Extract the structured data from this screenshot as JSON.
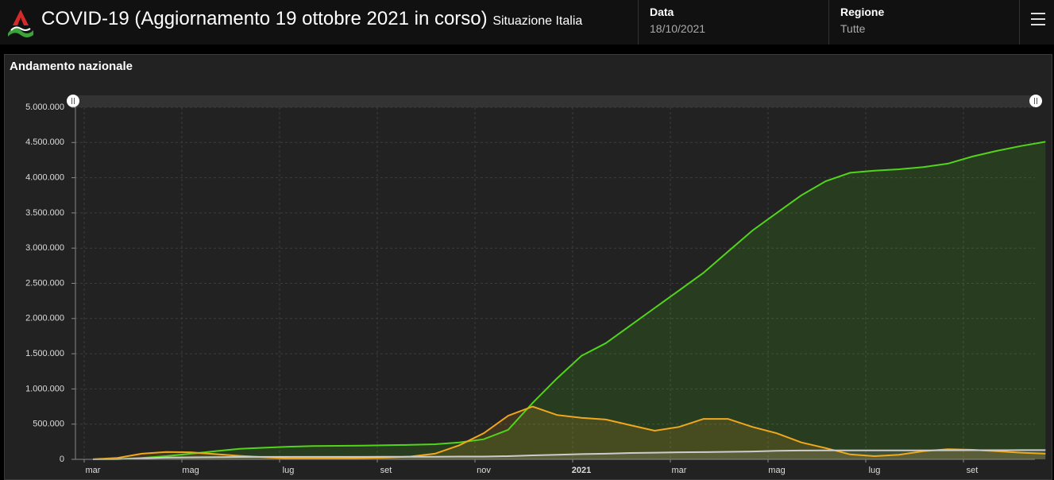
{
  "header": {
    "title": "COVID-19 (Aggiornamento 19 ottobre 2021 in corso)",
    "subtitle": "Situazione Italia",
    "date_label": "Data",
    "date_value": "18/10/2021",
    "region_label": "Regione",
    "region_value": "Tutte"
  },
  "chart_data": {
    "type": "area",
    "title": "Andamento nazionale",
    "categories": [
      "mar",
      null,
      null,
      null,
      "mag",
      null,
      null,
      null,
      "lug",
      null,
      null,
      null,
      "set",
      null,
      null,
      null,
      "nov",
      null,
      null,
      null,
      "2021",
      null,
      null,
      null,
      "mar",
      null,
      null,
      null,
      "mag",
      null,
      null,
      null,
      "lug",
      null,
      null,
      null,
      "set",
      null,
      null,
      null
    ],
    "series": [
      {
        "color": "#52d41a",
        "values": [
          0,
          3000,
          20000,
          45000,
          80000,
          115000,
          150000,
          165000,
          180000,
          188000,
          192000,
          195000,
          200000,
          205000,
          215000,
          240000,
          285000,
          420000,
          800000,
          1150000,
          1470000,
          1650000,
          1900000,
          2150000,
          2400000,
          2650000,
          2950000,
          3250000,
          3500000,
          3750000,
          3950000,
          4070000,
          4100000,
          4120000,
          4150000,
          4200000,
          4300000,
          4380000,
          4450000,
          4510000
        ]
      },
      {
        "color": "#f0a81c",
        "values": [
          1000,
          20000,
          80000,
          105000,
          100000,
          75000,
          50000,
          30000,
          15000,
          12000,
          13000,
          18000,
          25000,
          40000,
          80000,
          200000,
          370000,
          620000,
          750000,
          630000,
          590000,
          565000,
          485000,
          406000,
          460000,
          575000,
          575000,
          460000,
          370000,
          240000,
          160000,
          70000,
          45000,
          65000,
          115000,
          145000,
          135000,
          115000,
          95000,
          80000
        ]
      },
      {
        "color": "#cccccc",
        "values": [
          0,
          2000,
          13000,
          25000,
          28000,
          32000,
          34000,
          35000,
          35000,
          35000,
          35000,
          35500,
          36000,
          36000,
          37000,
          40000,
          40000,
          45000,
          56000,
          65000,
          75000,
          80000,
          90000,
          95000,
          100000,
          103000,
          107000,
          112000,
          122000,
          125000,
          126000,
          127000,
          127000,
          128000,
          128000,
          129000,
          130000,
          130000,
          131000,
          131000
        ]
      }
    ],
    "ylim": [
      0,
      5000000
    ],
    "yticks": [
      0,
      {
        "value": 500000,
        "label": "500.000"
      },
      {
        "value": 1000000,
        "label": "1.000.000"
      },
      {
        "value": 1500000,
        "label": "1.500.000"
      },
      {
        "value": 2000000,
        "label": "2.000.000"
      },
      {
        "value": 2500000,
        "label": "2.500.000"
      },
      {
        "value": 3000000,
        "label": "3.000.000"
      },
      {
        "value": 3500000,
        "label": "3.500.000"
      },
      {
        "value": 4000000,
        "label": "4.000.000"
      },
      {
        "value": 4500000,
        "label": "4.500.000"
      },
      {
        "value": 5000000,
        "label": "5.000.000"
      }
    ],
    "grid": true
  }
}
